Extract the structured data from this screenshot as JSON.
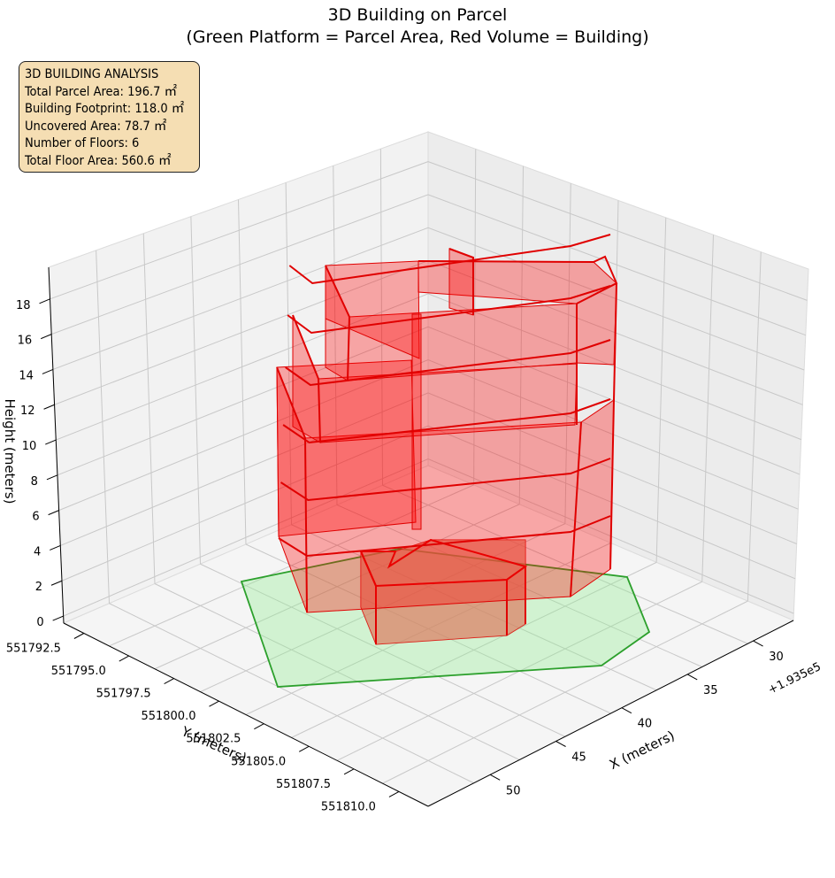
{
  "chart_data": {
    "type": "3d-polygon",
    "title": "3D Building on Parcel",
    "subtitle": "(Green Platform = Parcel Area, Red Volume = Building)",
    "xlabel": "X (meters)",
    "ylabel": "Y (meters)",
    "zlabel": "Height (meters)",
    "x_offset_label": "+1.935e5",
    "x_ticks": [
      "30",
      "35",
      "40",
      "45",
      "50"
    ],
    "y_ticks": [
      "551792.5",
      "551795.0",
      "551797.5",
      "551800.0",
      "551802.5",
      "551805.0",
      "551807.5",
      "551810.0"
    ],
    "z_ticks": [
      "0",
      "2",
      "4",
      "6",
      "8",
      "10",
      "12",
      "14",
      "16",
      "18"
    ],
    "info": {
      "heading": "3D BUILDING ANALYSIS",
      "lines": [
        "Total Parcel Area: 196.7 ㎡",
        "Building Footprint: 118.0 ㎡",
        "Uncovered Area: 78.7 ㎡",
        "Number of Floors: 6",
        "Total Floor Area: 560.6 ㎡"
      ]
    },
    "parcel_color": "#2ca02c",
    "parcel_fill": "#90ee90",
    "building_color": "#e00000",
    "building_fill": "#ff0000",
    "floors": 6
  }
}
